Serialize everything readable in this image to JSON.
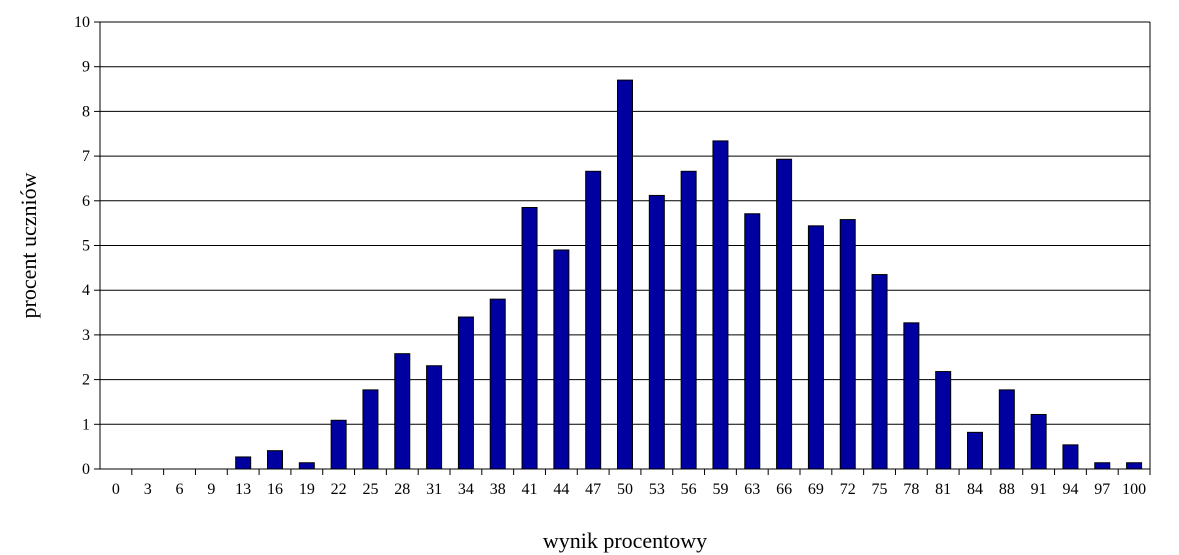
{
  "chart_data": {
    "type": "bar",
    "xlabel": "wynik procentowy",
    "ylabel": "procent uczniów",
    "ylim": [
      0,
      10
    ],
    "yticks": [
      0,
      1,
      2,
      3,
      4,
      5,
      6,
      7,
      8,
      9,
      10
    ],
    "grid": "horizontal",
    "categories": [
      "0",
      "3",
      "6",
      "9",
      "13",
      "16",
      "19",
      "22",
      "25",
      "28",
      "31",
      "34",
      "38",
      "41",
      "44",
      "47",
      "50",
      "53",
      "56",
      "59",
      "63",
      "66",
      "69",
      "72",
      "75",
      "78",
      "81",
      "84",
      "88",
      "91",
      "94",
      "97",
      "100"
    ],
    "values": [
      0,
      0,
      0,
      0,
      0.27,
      0.41,
      0.14,
      1.09,
      1.77,
      2.58,
      2.31,
      3.4,
      3.8,
      5.85,
      4.9,
      6.66,
      8.7,
      6.12,
      6.66,
      7.34,
      5.71,
      6.93,
      5.44,
      5.58,
      4.35,
      3.27,
      2.18,
      0.82,
      1.77,
      1.22,
      0.54,
      0.14,
      0.14
    ],
    "bar_color": "#0000a0",
    "bar_edge_color": "#000000"
  }
}
